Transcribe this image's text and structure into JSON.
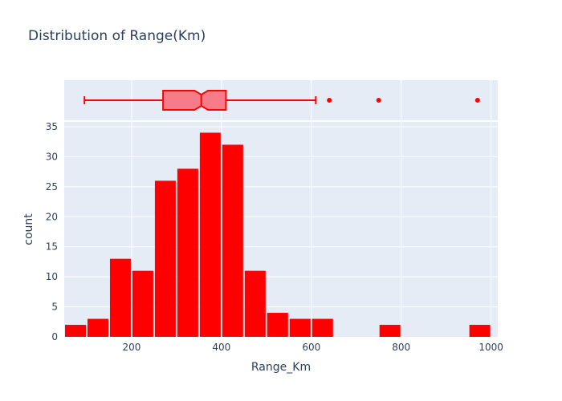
{
  "chart_data": {
    "type": "histogram",
    "title": "Distribution of Range(Km)",
    "xlabel": "Range_Km",
    "ylabel": "count",
    "color": "#ff0000",
    "box_fill": "#f77b88",
    "background": "#e5ecf6",
    "xlim": [
      50,
      1015
    ],
    "ylim": [
      0,
      35.8
    ],
    "x_ticks": [
      200,
      400,
      600,
      800,
      1000
    ],
    "y_ticks": [
      0,
      5,
      10,
      15,
      20,
      25,
      30,
      35
    ],
    "bin_width": 50,
    "bins": [
      {
        "start": 50,
        "count": 2
      },
      {
        "start": 100,
        "count": 3
      },
      {
        "start": 150,
        "count": 13
      },
      {
        "start": 200,
        "count": 11
      },
      {
        "start": 250,
        "count": 26
      },
      {
        "start": 300,
        "count": 28
      },
      {
        "start": 350,
        "count": 34
      },
      {
        "start": 400,
        "count": 32
      },
      {
        "start": 450,
        "count": 11
      },
      {
        "start": 500,
        "count": 4
      },
      {
        "start": 550,
        "count": 3
      },
      {
        "start": 600,
        "count": 3
      },
      {
        "start": 750,
        "count": 2
      },
      {
        "start": 950,
        "count": 2
      }
    ],
    "box": {
      "min": 95,
      "q1": 270,
      "median": 355,
      "q3": 410,
      "upper_fence": 610,
      "notch_low": 340,
      "notch_high": 370,
      "outliers": [
        640,
        750,
        970
      ]
    }
  }
}
